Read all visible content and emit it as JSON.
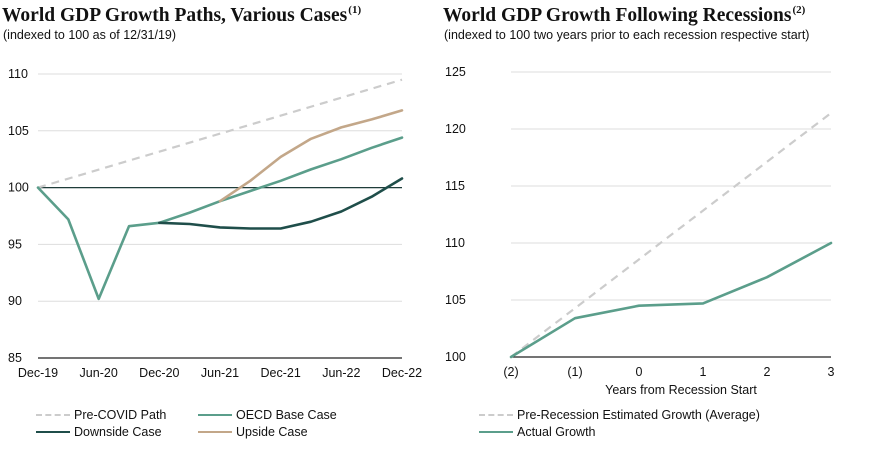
{
  "colors": {
    "pre_covid": "#cccccc",
    "oecd": "#5b9e8b",
    "downside": "#1f4e4a",
    "upside": "#c3a789",
    "baseline": "#1f3d3a",
    "gridline": "#dddddd"
  },
  "chart_data": [
    {
      "type": "line",
      "title": "World GDP Growth Paths, Various Cases",
      "title_note": "(1)",
      "subtitle": "(indexed to 100 as of 12/31/19)",
      "x_labels": [
        "Dec-19",
        "Jun-20",
        "Dec-20",
        "Jun-21",
        "Dec-21",
        "Jun-22",
        "Dec-22"
      ],
      "x_range": [
        0,
        12
      ],
      "ylim": [
        85,
        110
      ],
      "y_ticks": [
        85,
        90,
        95,
        100,
        105,
        110
      ],
      "reference_line": 100,
      "series": [
        {
          "name": "Pre-COVID Path",
          "style": "dashed",
          "color_key": "pre_covid",
          "x": [
            0,
            12
          ],
          "values": [
            100,
            109.5
          ]
        },
        {
          "name": "OECD Base Case",
          "style": "solid",
          "color_key": "oecd",
          "x": [
            0,
            1,
            2,
            3,
            4,
            5,
            6,
            7,
            8,
            9,
            10,
            11,
            12
          ],
          "values": [
            100,
            97.2,
            90.2,
            96.6,
            96.9,
            97.8,
            98.8,
            99.7,
            100.6,
            101.6,
            102.5,
            103.5,
            104.4
          ]
        },
        {
          "name": "Downside Case",
          "style": "solid",
          "color_key": "downside",
          "x": [
            4,
            5,
            6,
            7,
            8,
            9,
            10,
            11,
            12
          ],
          "values": [
            96.9,
            96.8,
            96.5,
            96.4,
            96.4,
            97.0,
            97.9,
            99.2,
            100.8
          ]
        },
        {
          "name": "Upside Case",
          "style": "solid",
          "color_key": "upside",
          "x": [
            6,
            7,
            8,
            9,
            10,
            11,
            12
          ],
          "values": [
            98.8,
            100.6,
            102.7,
            104.3,
            105.3,
            106.0,
            106.8
          ]
        }
      ],
      "legend": [
        {
          "label": "Pre-COVID Path",
          "style": "dashed",
          "color_key": "pre_covid"
        },
        {
          "label": "OECD Base Case",
          "style": "solid",
          "color_key": "oecd"
        },
        {
          "label": "Downside Case",
          "style": "solid",
          "color_key": "downside"
        },
        {
          "label": "Upside Case",
          "style": "solid",
          "color_key": "upside"
        }
      ]
    },
    {
      "type": "line",
      "title": "World GDP Growth Following Recessions",
      "title_note": "(2)",
      "subtitle": "(indexed to 100 two years prior to each recession respective start)",
      "xlabel": "Years from Recession Start",
      "x_labels": [
        "(2)",
        "(1)",
        "0",
        "1",
        "2",
        "3"
      ],
      "x_range": [
        0,
        5
      ],
      "ylim": [
        100,
        125
      ],
      "y_ticks": [
        100,
        105,
        110,
        115,
        120,
        125
      ],
      "series": [
        {
          "name": "Pre-Recession Estimated Growth (Average)",
          "style": "dashed",
          "color_key": "pre_covid",
          "x": [
            0,
            5
          ],
          "values": [
            100,
            121.4
          ]
        },
        {
          "name": "Actual Growth",
          "style": "solid",
          "color_key": "oecd",
          "x": [
            0,
            1,
            2,
            3,
            4,
            5
          ],
          "values": [
            100,
            103.4,
            104.5,
            104.7,
            107.0,
            110.0
          ]
        }
      ],
      "legend": [
        {
          "label": "Pre-Recession Estimated Growth (Average)",
          "style": "dashed",
          "color_key": "pre_covid"
        },
        {
          "label": "Actual Growth",
          "style": "solid",
          "color_key": "oecd"
        }
      ]
    }
  ]
}
